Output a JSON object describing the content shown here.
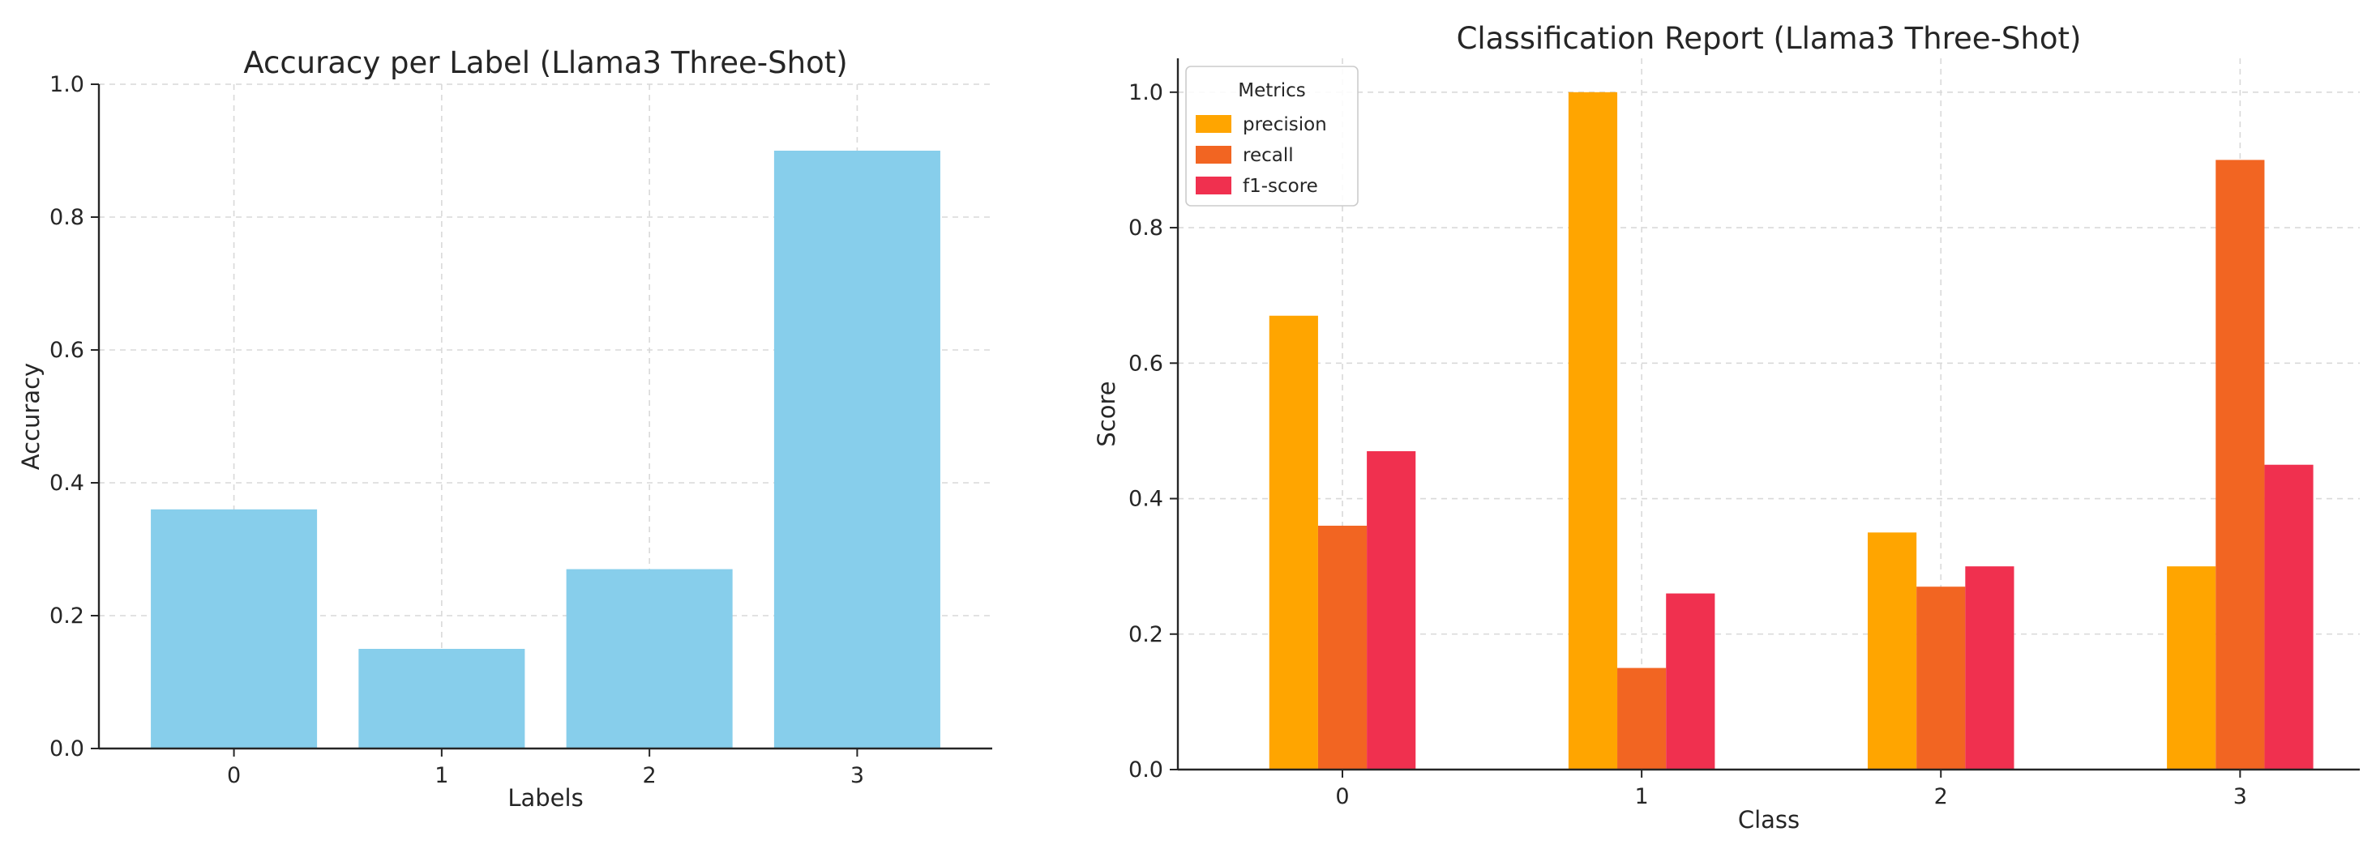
{
  "chart_data": [
    {
      "type": "bar",
      "title": "Accuracy per Label (Llama3 Three-Shot)",
      "xlabel": "Labels",
      "ylabel": "Accuracy",
      "categories": [
        "0",
        "1",
        "2",
        "3"
      ],
      "values": [
        0.36,
        0.15,
        0.27,
        0.9
      ],
      "ylim": [
        0,
        1.0
      ],
      "yticks": [
        "0.0",
        "0.2",
        "0.4",
        "0.6",
        "0.8",
        "1.0"
      ],
      "grid": true,
      "color": "#87CEEB"
    },
    {
      "type": "bar",
      "title": "Classification Report (Llama3 Three-Shot)",
      "xlabel": "Class",
      "ylabel": "Score",
      "categories": [
        "0",
        "1",
        "2",
        "3"
      ],
      "series": [
        {
          "name": "precision",
          "values": [
            0.67,
            1.0,
            0.35,
            0.3
          ],
          "color": "#FFA500"
        },
        {
          "name": "recall",
          "values": [
            0.36,
            0.15,
            0.27,
            0.9
          ],
          "color": "#F26522"
        },
        {
          "name": "f1-score",
          "values": [
            0.47,
            0.26,
            0.3,
            0.45
          ],
          "color": "#F0304F"
        }
      ],
      "ylim": [
        0,
        1.05
      ],
      "yticks": [
        "0.0",
        "0.2",
        "0.4",
        "0.6",
        "0.8",
        "1.0"
      ],
      "grid": true,
      "legend": {
        "title": "Metrics",
        "placement": "top-left"
      }
    }
  ]
}
